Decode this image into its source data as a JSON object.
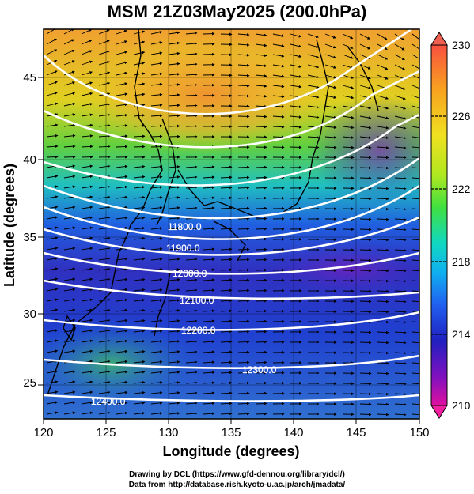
{
  "title": "MSM 21Z03May2025 (200.0hPa)",
  "x_axis": {
    "label": "Longitude (degrees)",
    "ticks": [
      120,
      125,
      130,
      135,
      140,
      145,
      150
    ]
  },
  "y_axis": {
    "label": "Latitude  (degrees)",
    "ticks": [
      25,
      30,
      35,
      40,
      45
    ]
  },
  "colorbar": {
    "ticks": [
      230,
      226,
      222,
      218,
      214,
      210
    ],
    "colors": [
      "#d90060",
      "#c000d0",
      "#4040e0",
      "#1088f0",
      "#10d8e0",
      "#20e0a0",
      "#50e040",
      "#b0e820",
      "#f0e020",
      "#f8a020",
      "#f86040"
    ]
  },
  "contours": [
    {
      "label": "11800.0"
    },
    {
      "label": "11900.0"
    },
    {
      "label": "12000.0"
    },
    {
      "label": "12100.0"
    },
    {
      "label": "12200.0"
    },
    {
      "label": "12300.0"
    },
    {
      "label": "12400.0"
    }
  ],
  "credits": {
    "line1": "Drawing by DCL (https://www.gfd-dennou.org/library/dcl/)",
    "line2": "Data from http://database.rish.kyoto-u.ac.jp/arch/jmadata/"
  }
}
